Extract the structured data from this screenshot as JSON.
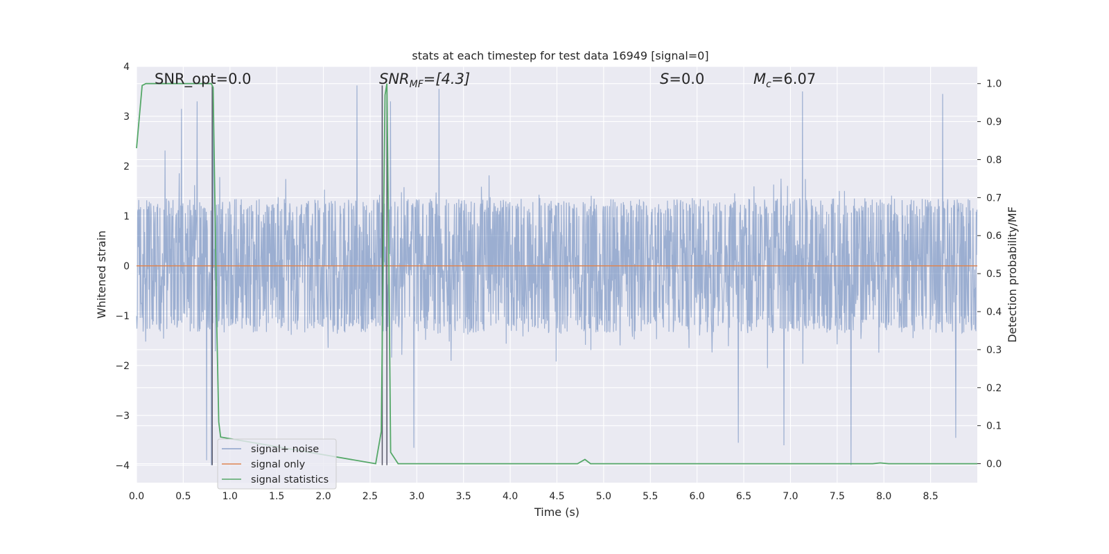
{
  "chart_data": {
    "type": "line",
    "title": "stats at each timestep for test data 16949 [signal=0]",
    "xlabel": "Time (s)",
    "ylabel": "Whitened strain",
    "y2label": "Detection probability/MF",
    "xlim": [
      0.0,
      9.0
    ],
    "ylim": [
      -4.35,
      4.0
    ],
    "y2lim": [
      -0.05,
      1.045
    ],
    "xticks": [
      "0.0",
      "0.5",
      "1.0",
      "1.5",
      "2.0",
      "2.5",
      "3.0",
      "3.5",
      "4.0",
      "4.5",
      "5.0",
      "5.5",
      "6.0",
      "6.5",
      "7.0",
      "7.5",
      "8.0",
      "8.5"
    ],
    "yticks": [
      "4",
      "3",
      "2",
      "1",
      "0",
      "−1",
      "−2",
      "−3",
      "−4"
    ],
    "y2ticks": [
      "1.0",
      "0.9",
      "0.8",
      "0.7",
      "0.6",
      "0.5",
      "0.4",
      "0.3",
      "0.2",
      "0.1",
      "0.0"
    ],
    "grid": true,
    "legend_position": "lower-left",
    "annotations": {
      "snr_opt": "SNR_opt=0.0",
      "snr_mf_main": "SNR",
      "snr_mf_sub": "MF",
      "snr_mf_value": "=[4.3]",
      "s_main": "S",
      "s_value": "=0.0",
      "mc_main": "M",
      "mc_sub": "c",
      "mc_value": "=6.07"
    },
    "series": [
      {
        "name": "signal+ noise",
        "color": "#4c72b0",
        "style": "noise trace, approx. symmetric, dense core ±1.3, frequent spikes to ±2.5, extremes up to ~3.6 and ~-4.0",
        "sample_rate_hz": 256,
        "peak_spikes": [
          {
            "x": 0.48,
            "y": 3.15
          },
          {
            "x": 0.65,
            "y": 3.3
          },
          {
            "x": 0.82,
            "y": 3.3
          },
          {
            "x": 2.36,
            "y": 3.62
          },
          {
            "x": 2.63,
            "y": 3.62
          },
          {
            "x": 2.72,
            "y": 3.3
          },
          {
            "x": 3.24,
            "y": 3.55
          },
          {
            "x": 7.13,
            "y": 3.5
          },
          {
            "x": 8.63,
            "y": 3.45
          },
          {
            "x": 0.75,
            "y": -3.9
          },
          {
            "x": 0.8,
            "y": -4.0
          },
          {
            "x": 2.97,
            "y": -3.65
          },
          {
            "x": 6.44,
            "y": -3.55
          },
          {
            "x": 6.93,
            "y": -3.6
          },
          {
            "x": 7.65,
            "y": -4.0
          },
          {
            "x": 8.77,
            "y": -3.45
          }
        ]
      },
      {
        "name": "signal only",
        "color": "#dd8452",
        "x": [
          0.0,
          9.0
        ],
        "y": [
          0.0,
          0.0
        ]
      },
      {
        "name": "signal statistics",
        "color": "#55a868",
        "axis": "right",
        "x": [
          0.0,
          0.06,
          0.1,
          0.8,
          0.82,
          0.86,
          0.88,
          0.9,
          2.56,
          2.62,
          2.64,
          2.66,
          2.68,
          2.7,
          2.72,
          2.8,
          4.72,
          4.8,
          4.86,
          7.88,
          7.96,
          8.05,
          9.0
        ],
        "y": [
          0.83,
          0.995,
          1.0,
          1.0,
          0.99,
          0.35,
          0.11,
          0.07,
          0.0,
          0.085,
          0.55,
          0.97,
          1.0,
          0.55,
          0.03,
          0.0,
          0.0,
          0.011,
          0.0,
          0.0,
          0.002,
          0.0,
          0.0
        ]
      }
    ],
    "vertical_markers": {
      "color": "#555566",
      "x": [
        0.81,
        2.63,
        2.68
      ],
      "y_top": [
        3.62,
        3.62,
        3.62
      ],
      "y_bottom": [
        -4.0,
        -4.0,
        -4.0
      ]
    }
  }
}
